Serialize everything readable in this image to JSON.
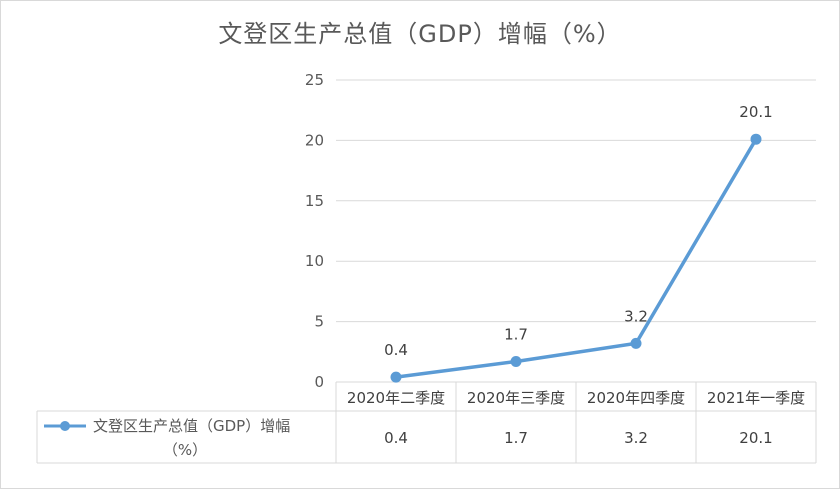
{
  "chart_data": {
    "type": "line",
    "title": "文登区生产总值（GDP）增幅（%）",
    "categories": [
      "2020年二季度",
      "2020年三季度",
      "2020年四季度",
      "2021年一季度"
    ],
    "series": [
      {
        "name": "文登区生产总值（GDP）增幅（%）",
        "values": [
          0.4,
          1.7,
          3.2,
          20.1
        ],
        "color": "#5b9bd5"
      }
    ],
    "ylim": [
      0,
      25
    ],
    "yticks": [
      "0",
      "5",
      "10",
      "15",
      "20",
      "25"
    ],
    "grid": true,
    "data_labels": [
      "0.4",
      "1.7",
      "3.2",
      "20.1"
    ],
    "legend": {
      "placement": "data-table-left",
      "line1": "文登区生产总值（GDP）增幅",
      "line2": "（%）"
    },
    "data_table": [
      "0.4",
      "1.7",
      "3.2",
      "20.1"
    ]
  }
}
